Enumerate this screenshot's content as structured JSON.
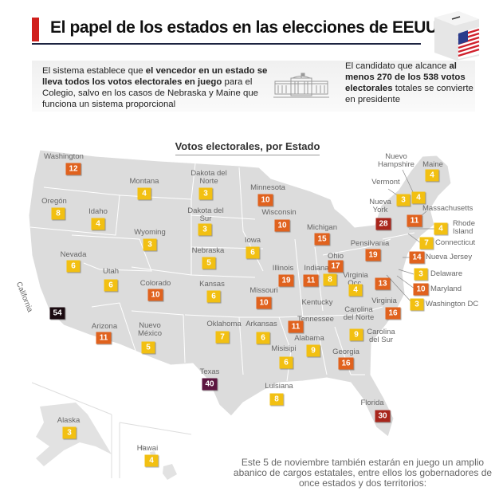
{
  "header": {
    "title": "El papel de los estados en las elecciones de EEUU",
    "ballot_icon": "ballot-box-us-flag-icon"
  },
  "intro": {
    "left": [
      {
        "text": "El sistema establece que ",
        "bold": false
      },
      {
        "text": "el vencedor en un estado se lleva todos los votos electorales en juego",
        "bold": true
      },
      {
        "text": " para el Colegio, salvo en los casos de Nebraska y Maine  que funciona un sistema proporcional",
        "bold": false
      }
    ],
    "icon": "white-house-icon",
    "right": [
      {
        "text": "El candidato que alcance ",
        "bold": false
      },
      {
        "text": "al menos 270 de los 538 votos electorales",
        "bold": true
      },
      {
        "text": " totales se convierte en presidente",
        "bold": false
      }
    ]
  },
  "map": {
    "subtitle": "Votos electorales, por Estado",
    "colors": {
      "low": "#f2c012",
      "mid": "#e0621e",
      "high": "#a8261c",
      "very_high": "#5c1640",
      "max": "#1a0a10",
      "land": "#dcdcdc",
      "border": "#ffffff"
    },
    "states": [
      {
        "name": "Washington",
        "votes": 12
      },
      {
        "name": "Oregón",
        "votes": 8
      },
      {
        "name": "Idaho",
        "votes": 4
      },
      {
        "name": "Montana",
        "votes": 4
      },
      {
        "name": "Wyoming",
        "votes": 3
      },
      {
        "name": "Dakota del Norte",
        "votes": 3
      },
      {
        "name": "Dakota del Sur",
        "votes": 3
      },
      {
        "name": "Minnesota",
        "votes": 10
      },
      {
        "name": "Wisconsin",
        "votes": 10
      },
      {
        "name": "Nebraska",
        "votes": 5
      },
      {
        "name": "Iowa",
        "votes": 6
      },
      {
        "name": "Michigan",
        "votes": 15
      },
      {
        "name": "Nevada",
        "votes": 6
      },
      {
        "name": "Utah",
        "votes": 6
      },
      {
        "name": "Colorado",
        "votes": 10
      },
      {
        "name": "Kansas",
        "votes": 6
      },
      {
        "name": "Missouri",
        "votes": 10
      },
      {
        "name": "Illinois",
        "votes": 19
      },
      {
        "name": "Indiana",
        "votes": 11
      },
      {
        "name": "Ohio",
        "votes": 17
      },
      {
        "name": "Kentucky",
        "votes": 8
      },
      {
        "name": "Virginia Occ.",
        "votes": 4
      },
      {
        "name": "Virginia",
        "votes": 13
      },
      {
        "name": "Pensilvania",
        "votes": 19
      },
      {
        "name": "Tennessee",
        "votes": 11
      },
      {
        "name": "Carolina del Norte",
        "votes": 16
      },
      {
        "name": "Carolina del Sur",
        "votes": 9
      },
      {
        "name": "Georgia",
        "votes": 16
      },
      {
        "name": "Alabama",
        "votes": 9
      },
      {
        "name": "Misisipi",
        "votes": 6
      },
      {
        "name": "Arkansas",
        "votes": 6
      },
      {
        "name": "Oklahoma",
        "votes": 7
      },
      {
        "name": "Luisiana",
        "votes": 8
      },
      {
        "name": "Texas",
        "votes": 40
      },
      {
        "name": "Nuevo México",
        "votes": 5
      },
      {
        "name": "Arizona",
        "votes": 11
      },
      {
        "name": "California",
        "votes": 54
      },
      {
        "name": "Alaska",
        "votes": 3
      },
      {
        "name": "Hawai",
        "votes": 4
      },
      {
        "name": "Florida",
        "votes": 30
      },
      {
        "name": "Maine",
        "votes": 4
      },
      {
        "name": "Nuevo Hampshire",
        "votes": 4
      },
      {
        "name": "Vermont",
        "votes": 3
      },
      {
        "name": "Nueva York",
        "votes": 28
      },
      {
        "name": "Massachusetts",
        "votes": 11
      },
      {
        "name": "Rhode Island",
        "votes": 4
      },
      {
        "name": "Connecticut",
        "votes": 7
      },
      {
        "name": "Nueva Jersey",
        "votes": 14
      },
      {
        "name": "Delaware",
        "votes": 3
      },
      {
        "name": "Maryland",
        "votes": 10
      },
      {
        "name": "Washington DC",
        "votes": 3
      }
    ]
  },
  "footer": {
    "text": "Este 5 de noviembre también estarán en juego un amplio abanico de cargos estatales, entre ellos los gobernadores de once estados y dos territorios:"
  }
}
